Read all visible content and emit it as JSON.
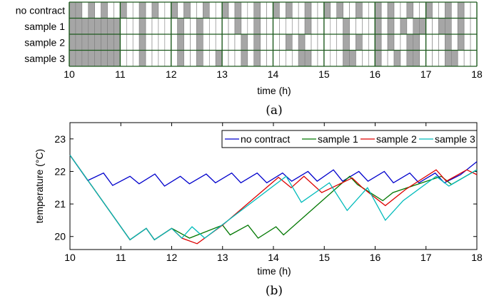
{
  "panel_a": {
    "caption": "(a)",
    "chart_data": {
      "type": "heatmap",
      "rows": [
        "no contract",
        "sample 1",
        "sample 2",
        "sample 3"
      ],
      "x_start": 10,
      "x_end": 18,
      "cells_per_hour": 8,
      "xlabel": "time (h)",
      "xticks": [
        10,
        11,
        12,
        13,
        14,
        15,
        16,
        17,
        18
      ],
      "legend_on": "gray",
      "on_cells": [
        [
          0,
          1,
          3,
          5,
          8,
          11,
          13,
          16,
          18,
          21,
          24,
          26,
          29,
          32,
          34,
          37,
          40,
          42,
          45,
          48,
          50,
          53,
          56,
          59,
          61,
          64
        ],
        [
          0,
          1,
          2,
          3,
          4,
          5,
          6,
          7,
          11,
          17,
          20,
          26,
          29,
          37,
          43,
          48,
          50,
          52,
          54,
          55,
          58,
          59,
          61,
          67,
          72,
          74
        ],
        [
          0,
          1,
          2,
          3,
          4,
          5,
          6,
          7,
          11,
          17,
          20,
          27,
          29,
          34,
          36,
          43,
          45,
          48,
          50,
          53,
          54,
          59,
          61,
          66,
          72,
          73
        ],
        [
          0,
          1,
          2,
          3,
          4,
          5,
          6,
          7,
          11,
          17,
          20,
          23,
          27,
          29,
          36,
          37,
          43,
          44,
          48,
          51,
          53,
          54,
          59,
          60,
          66,
          73
        ]
      ]
    }
  },
  "panel_b": {
    "caption": "(b)",
    "chart_data": {
      "type": "line",
      "xlabel": "time (h)",
      "ylabel": "temperature (°C)",
      "xlim": [
        10,
        18
      ],
      "ylim": [
        19.6,
        23.5
      ],
      "xticks": [
        10,
        11,
        12,
        13,
        14,
        15,
        16,
        17,
        18
      ],
      "yticks": [
        20,
        21,
        22,
        23
      ],
      "legend_position": "top-right",
      "series": [
        {
          "name": "no contract",
          "color": "#0000cc",
          "x": [
            10,
            10.35,
            10.66,
            10.84,
            11.18,
            11.36,
            11.67,
            11.86,
            12.17,
            12.35,
            12.68,
            12.86,
            13.18,
            13.36,
            13.68,
            13.87,
            14.18,
            14.36,
            14.68,
            14.86,
            15.18,
            15.36,
            15.68,
            15.86,
            16.18,
            16.36,
            16.68,
            16.86,
            17.18,
            17.36,
            17.68,
            18
          ],
          "y": [
            22.5,
            21.72,
            21.95,
            21.57,
            21.85,
            21.62,
            21.92,
            21.55,
            21.85,
            21.62,
            21.92,
            21.65,
            21.95,
            21.65,
            21.95,
            21.65,
            21.95,
            21.7,
            22.0,
            21.7,
            22.05,
            21.7,
            22.0,
            21.7,
            22.0,
            21.65,
            21.95,
            21.65,
            21.95,
            21.65,
            21.9,
            22.3
          ]
        },
        {
          "name": "sample 1",
          "color": "#007700",
          "x": [
            10,
            11.18,
            11.5,
            11.66,
            12.0,
            12.35,
            13.0,
            13.15,
            13.5,
            13.7,
            14.05,
            14.2,
            15.5,
            15.65,
            16.15,
            16.35,
            17.3,
            17.5,
            18
          ],
          "y": [
            22.5,
            19.9,
            20.25,
            19.9,
            20.25,
            19.95,
            20.35,
            20.05,
            20.35,
            19.95,
            20.3,
            20.05,
            21.85,
            21.6,
            21.1,
            21.35,
            21.85,
            21.6,
            22.05
          ]
        },
        {
          "name": "sample 2",
          "color": "#dd0000",
          "x": [
            10,
            11.18,
            11.5,
            11.66,
            12.0,
            12.2,
            12.5,
            13.0,
            14.1,
            14.35,
            14.6,
            14.95,
            15.55,
            15.75,
            16.2,
            16.6,
            17.2,
            17.4,
            17.8,
            18
          ],
          "y": [
            22.5,
            19.9,
            20.25,
            19.9,
            20.25,
            19.95,
            19.78,
            20.35,
            21.82,
            21.5,
            21.85,
            21.35,
            21.8,
            21.5,
            20.95,
            21.45,
            22.05,
            21.7,
            22.05,
            21.9
          ]
        },
        {
          "name": "sample 3",
          "color": "#00bbbb",
          "x": [
            10,
            11.18,
            11.5,
            11.66,
            12.0,
            12.2,
            12.4,
            12.65,
            14.25,
            14.55,
            15.1,
            15.45,
            15.85,
            16.2,
            16.55,
            17.2,
            17.45,
            18
          ],
          "y": [
            22.5,
            19.9,
            20.25,
            19.9,
            20.25,
            19.95,
            20.3,
            19.95,
            21.85,
            21.05,
            21.65,
            20.8,
            21.5,
            20.5,
            21.1,
            21.85,
            21.55,
            22.05
          ]
        }
      ]
    }
  }
}
